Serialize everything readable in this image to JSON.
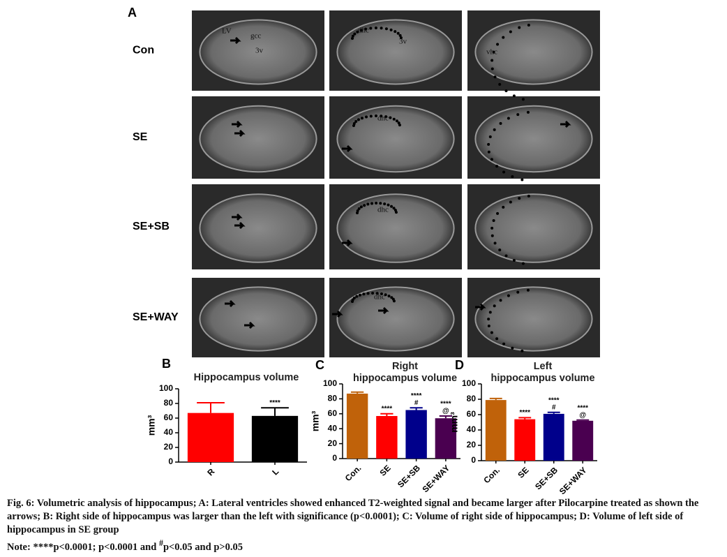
{
  "panel_a": {
    "label": "A",
    "rows": [
      "Con",
      "SE",
      "SE+SB",
      "SE+WAY"
    ],
    "annotations": [
      "LV",
      "gcc",
      "3v",
      "dhc",
      "3v",
      "vhc",
      "dhc",
      "dhc",
      "dhc"
    ]
  },
  "chart_data": [
    {
      "type": "bar",
      "label": "B",
      "title": [
        "Hippocampus volume"
      ],
      "y_label": "mm³",
      "categories": [
        "R",
        "L"
      ],
      "values": [
        67,
        63
      ],
      "errors": [
        14,
        11
      ],
      "colors": [
        "#ff0000",
        "#000000"
      ],
      "significance": [
        [],
        [
          "****"
        ]
      ],
      "ylim": [
        0,
        100
      ],
      "yticks": [
        0,
        20,
        40,
        60,
        80,
        100
      ]
    },
    {
      "type": "bar",
      "label": "C",
      "title": [
        "Right",
        "hippocampus volume"
      ],
      "y_label": "mm³",
      "categories": [
        "Con.",
        "SE",
        "SE+SB",
        "SE+WAY"
      ],
      "values": [
        87,
        57,
        65,
        54
      ],
      "errors": [
        2,
        3,
        3,
        3
      ],
      "colors": [
        "#c0620a",
        "#ff0000",
        "#00008b",
        "#4a0050"
      ],
      "significance": [
        [],
        [
          "****"
        ],
        [
          "****",
          "#"
        ],
        [
          "****",
          "@"
        ]
      ],
      "ylim": [
        0,
        100
      ],
      "yticks": [
        0,
        20,
        40,
        60,
        80,
        100
      ]
    },
    {
      "type": "bar",
      "label": "D",
      "title": [
        "Left",
        "hippocampus volume"
      ],
      "y_label": "mm³",
      "categories": [
        "Con.",
        "SE",
        "SE+SB",
        "SE+WAY"
      ],
      "values": [
        79,
        54,
        61,
        52
      ],
      "errors": [
        2,
        2,
        2,
        1
      ],
      "colors": [
        "#c0620a",
        "#ff0000",
        "#00008b",
        "#4a0050"
      ],
      "significance": [
        [],
        [
          "****"
        ],
        [
          "****",
          "#"
        ],
        [
          "****",
          "@"
        ]
      ],
      "ylim": [
        0,
        100
      ],
      "yticks": [
        0,
        20,
        40,
        60,
        80,
        100
      ]
    }
  ],
  "caption": {
    "lead": "Fig. 6:",
    "text": "Volumetric analysis of hippocampus; A: Lateral ventricles showed enhanced T2-weighted signal and became larger after Pilocarpine treated as shown the arrows; B: Right side of hippocampus was larger than the left with significance (p<0.0001); C: Volume of right side of hippocampus; D: Volume of left side of hippocampus in SE group",
    "note": [
      "Note: ****p<0.0001; p<0.0001 and ",
      "#",
      "p<0.05 and p>0.05"
    ]
  }
}
